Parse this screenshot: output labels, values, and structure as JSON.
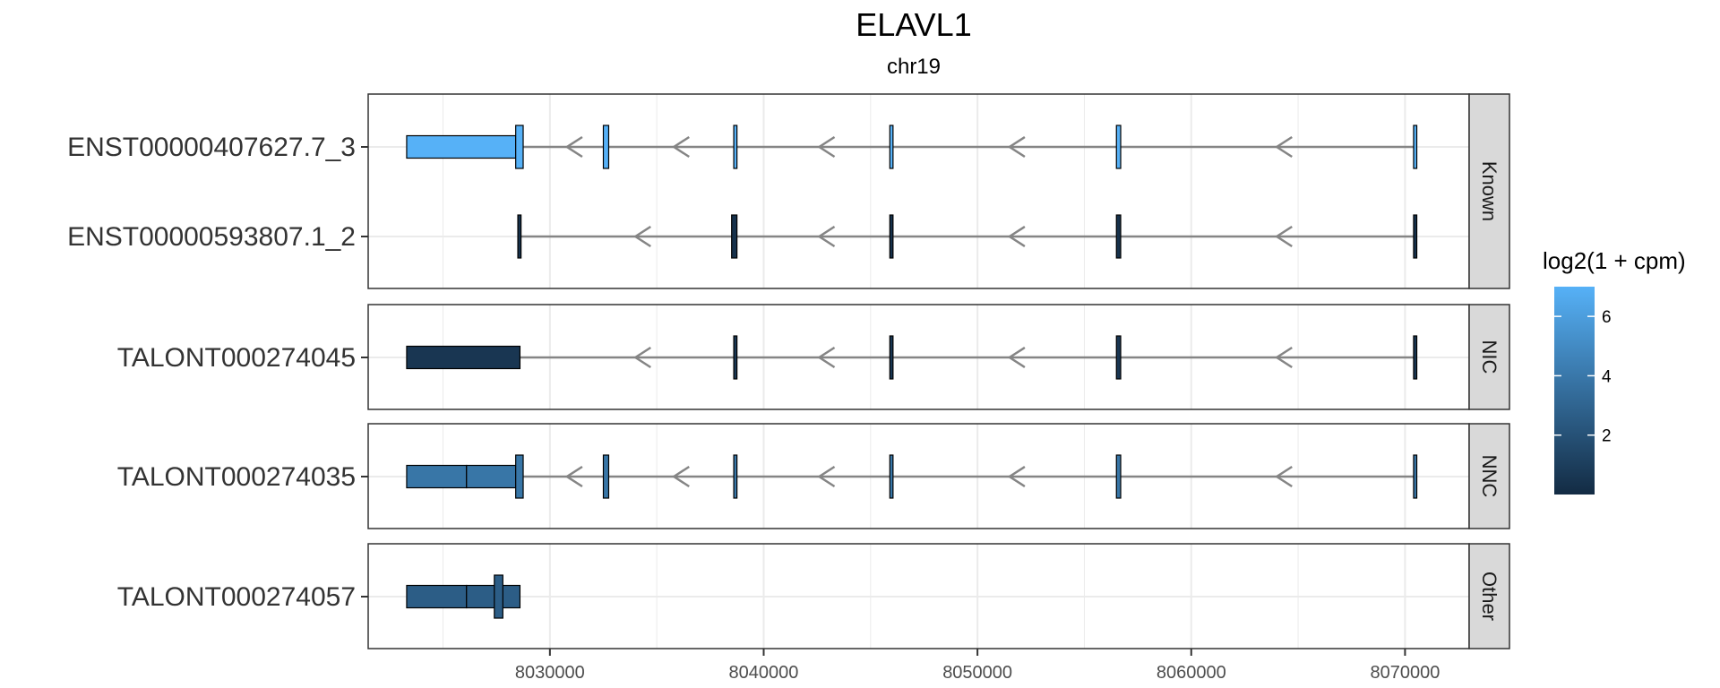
{
  "colors": {
    "low": "#132B43",
    "high": "#56B1F7",
    "intron": "#858585",
    "grid": "#EBEBEB",
    "strip_fill": "#D9D9D9",
    "panel_border": "#333333"
  },
  "chart_data": {
    "type": "transcript_structure",
    "title": "ELAVL1",
    "subtitle": "chr19",
    "xlabel": "",
    "ylabel": "",
    "strand": "-",
    "xlim": [
      8021500,
      8073000
    ],
    "x_ticks": [
      8030000,
      8040000,
      8050000,
      8060000,
      8070000
    ],
    "x_tick_labels": [
      "8030000",
      "8040000",
      "8050000",
      "8060000",
      "8070000"
    ],
    "grid": true,
    "legend": {
      "title": "log2(1 + cpm)",
      "position": "right",
      "range": [
        0,
        7
      ],
      "ticks": [
        2,
        4,
        6
      ],
      "tick_labels": [
        "2",
        "4",
        "6"
      ]
    },
    "panels": [
      {
        "label": "Known",
        "transcripts": [
          {
            "id": "ENST00000407627.7_3",
            "log2_cpm": 7.0,
            "intron_range": [
              8028600,
              8070500
            ],
            "utr": [
              [
                8023300,
                8028400
              ]
            ],
            "cds": [
              [
                8028400,
                8028750
              ],
              [
                8032500,
                8032750
              ],
              [
                8038600,
                8038750
              ],
              [
                8045900,
                8046050
              ],
              [
                8056500,
                8056700
              ],
              [
                8070400,
                8070550
              ]
            ],
            "arrows": [
              8030800,
              8035800,
              8042600,
              8051500,
              8064000
            ]
          },
          {
            "id": "ENST00000593807.1_2",
            "log2_cpm": 0.3,
            "intron_range": [
              8028600,
              8070500
            ],
            "utr": [],
            "cds": [
              [
                8028500,
                8028650
              ],
              [
                8038500,
                8038750
              ],
              [
                8045900,
                8046050
              ],
              [
                8056500,
                8056700
              ],
              [
                8070400,
                8070550
              ]
            ],
            "arrows": [
              8034000,
              8042600,
              8051500,
              8064000
            ]
          }
        ]
      },
      {
        "label": "NIC",
        "transcripts": [
          {
            "id": "TALONT000274045",
            "log2_cpm": 0.6,
            "intron_range": [
              8028600,
              8070500
            ],
            "utr": [
              [
                8023300,
                8028600
              ]
            ],
            "cds": [
              [
                8038600,
                8038750
              ],
              [
                8045900,
                8046050
              ],
              [
                8056500,
                8056700
              ],
              [
                8070400,
                8070550
              ]
            ],
            "arrows": [
              8034000,
              8042600,
              8051500,
              8064000
            ]
          }
        ]
      },
      {
        "label": "NNC",
        "transcripts": [
          {
            "id": "TALONT000274035",
            "log2_cpm": 3.9,
            "intron_range": [
              8028600,
              8070500
            ],
            "utr": [
              [
                8023300,
                8026100
              ],
              [
                8026100,
                8028400
              ]
            ],
            "cds": [
              [
                8028400,
                8028750
              ],
              [
                8032500,
                8032750
              ],
              [
                8038600,
                8038750
              ],
              [
                8045900,
                8046050
              ],
              [
                8056500,
                8056700
              ],
              [
                8070400,
                8070550
              ]
            ],
            "arrows": [
              8030800,
              8035800,
              8042600,
              8051500,
              8064000
            ]
          }
        ]
      },
      {
        "label": "Other",
        "transcripts": [
          {
            "id": "TALONT000274057",
            "log2_cpm": 2.6,
            "intron_range": null,
            "utr": [
              [
                8023300,
                8026100
              ],
              [
                8026100,
                8028600
              ]
            ],
            "cds": [
              [
                8027400,
                8027800
              ]
            ],
            "arrows": []
          }
        ]
      }
    ]
  }
}
